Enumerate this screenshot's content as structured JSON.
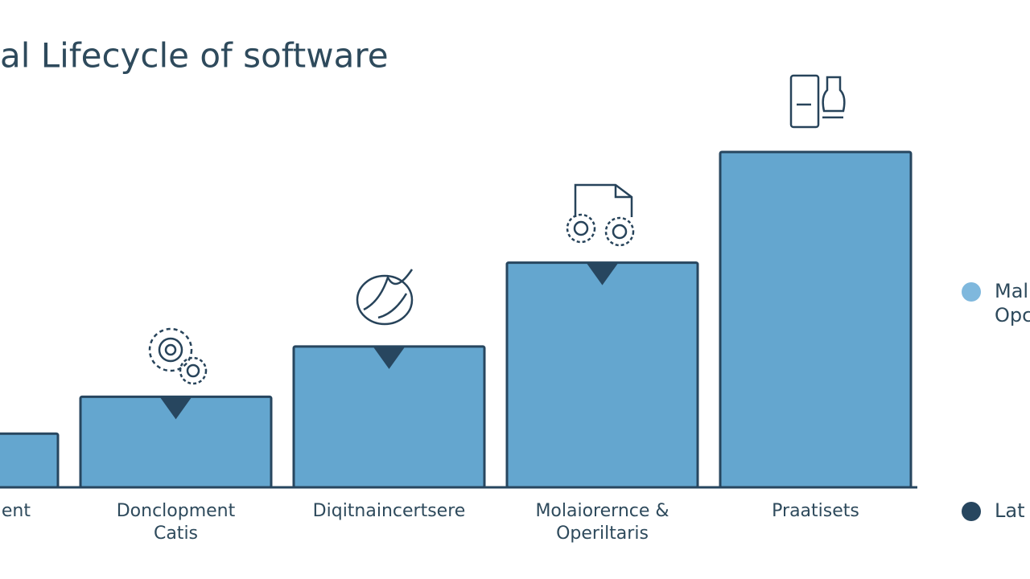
{
  "chart_data": {
    "type": "bar",
    "title": "al Lifecycle of software",
    "categories": [
      [
        "ent"
      ],
      [
        "Donclopment",
        "Catis"
      ],
      [
        "Diqitnaincertsere"
      ],
      [
        "Molaiorernce &",
        "Operiltaris"
      ],
      [
        "Praatisets"
      ]
    ],
    "values": [
      16,
      27,
      42,
      67,
      100
    ],
    "color": "#64a6cf",
    "edge_color": "#27465f",
    "legend": [
      {
        "label": [
          "Mal",
          "Opc"
        ],
        "color": "#7fb8dd"
      },
      {
        "label": [
          "Lat"
        ],
        "color": "#27465f"
      }
    ]
  }
}
